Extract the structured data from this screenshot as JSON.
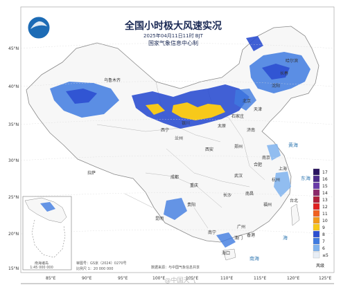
{
  "title": "全国小时极大风速实况",
  "datetime": "2025年04月11日11时 BJT",
  "agency": "国家气象信息中心制",
  "lat_labels": [
    "45°N",
    "40°N",
    "35°N",
    "30°N",
    "25°N",
    "20°N",
    "15°N"
  ],
  "lon_labels": [
    "85°E",
    "90°E",
    "95°E",
    "100°E",
    "105°E",
    "110°E",
    "115°E",
    "120°E",
    "125°E"
  ],
  "cities": [
    "乌鲁木齐",
    "哈尔滨",
    "长春",
    "沈阳",
    "北京",
    "天津",
    "石家庄",
    "银川",
    "太原",
    "济南",
    "西宁",
    "兰州",
    "郑州",
    "西安",
    "拉萨",
    "成都",
    "武汉",
    "合肥",
    "南京",
    "上海",
    "杭州",
    "重庆",
    "长沙",
    "南昌",
    "福州",
    "台北",
    "贵阳",
    "昆明",
    "广州",
    "南宁",
    "香港",
    "澳门",
    "海口"
  ],
  "seas": [
    "黄海",
    "东海",
    "海",
    "南海"
  ],
  "legend": {
    "title": "风级",
    "levels": [
      "17",
      "16",
      "15",
      "14",
      "13",
      "12",
      "11",
      "10",
      "9",
      "8",
      "7",
      "6",
      "≤5"
    ],
    "colors": [
      "#2a1560",
      "#4b2a8a",
      "#6a3aa8",
      "#8b2a6a",
      "#b0203a",
      "#e02020",
      "#f06020",
      "#f39a1a",
      "#f7c91a",
      "#2c4fd0",
      "#3f7be0",
      "#7fb3ef",
      "#e8eef6"
    ]
  },
  "map_notes": {
    "review_no": "审图号：GS京（2024）0270号",
    "scale": "比例尺 1：20 000 000",
    "data_source": "数据来源：与中国气象信息共享"
  },
  "inset": {
    "label": "南海诸岛",
    "scale": "1:45 000 000"
  },
  "watermark": "@中国天气"
}
